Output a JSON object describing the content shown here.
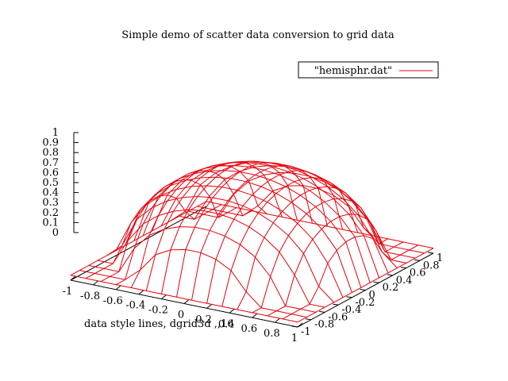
{
  "chart_data": {
    "type": "surface-3d",
    "title": "Simple demo of scatter data conversion to grid data",
    "xlabel": "data style lines, dgrid3d ,,16",
    "legend": {
      "entries": [
        {
          "name": "\"hemisphr.dat\"",
          "color": "#e8000b"
        }
      ],
      "placement": "top-right"
    },
    "x_range": [
      -1,
      1
    ],
    "y_range": [
      -1,
      1
    ],
    "z_range": [
      0,
      1
    ],
    "x_ticks": [
      "-1",
      "-0.8",
      "-0.6",
      "-0.4",
      "-0.2",
      "0",
      "0.2",
      "0.4",
      "0.6",
      "0.8",
      "1"
    ],
    "y_ticks": [
      "-1",
      "-0.8",
      "-0.6",
      "-0.4",
      "-0.2",
      "0",
      "0.2",
      "0.4",
      "0.6",
      "0.8",
      "1"
    ],
    "z_ticks": [
      "0",
      "0.1",
      "0.2",
      "0.3",
      "0.4",
      "0.5",
      "0.6",
      "0.7",
      "0.8",
      "0.9",
      "1"
    ],
    "grid_size": 16,
    "surface": "z = sqrt(1 - x^2 - y^2) on the unit disk, clipped at 0, gridded 16x16 by dgrid3d",
    "surface_color": "#e8000b"
  }
}
